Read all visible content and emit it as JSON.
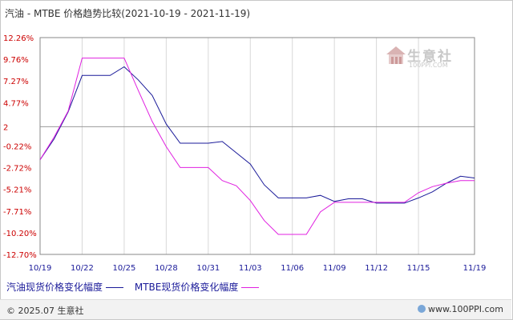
{
  "title": "汽油 - MTBE 价格趋势比较(2021-10-19 - 2021-11-19)",
  "watermark": {
    "name": "生意社",
    "url": "100PPI.COM"
  },
  "footer": {
    "left": "© 2025.07 生意社",
    "right": "www.100PPI.com"
  },
  "legend": [
    "汽油现货价格变化幅度",
    "MTBE现货价格变化幅度"
  ],
  "chart_data": {
    "type": "line",
    "x_tick_labels": [
      "10/19",
      "10/22",
      "10/25",
      "10/28",
      "10/31",
      "11/03",
      "11/06",
      "11/09",
      "11/12",
      "11/15",
      "11/19"
    ],
    "y_tick_labels": [
      "12.26%",
      "9.76%",
      "7.27%",
      "4.77%",
      "2",
      "-0.22%",
      "-2.72%",
      "-5.21%",
      "-7.71%",
      "-10.20%",
      "-12.70%"
    ],
    "y_ticks": [
      12.26,
      9.76,
      7.27,
      4.77,
      2,
      -0.22,
      -2.72,
      -5.21,
      -7.71,
      -10.2,
      -12.7
    ],
    "ylim": [
      -12.7,
      12.26
    ],
    "grid": "vertical",
    "legend_position": "bottom-left",
    "colors": {
      "gasoline": "#1a1a99",
      "mtbe": "#e020e0"
    },
    "series": [
      {
        "name": "汽油现货价格变化幅度",
        "color": "#1a1a99",
        "points": [
          [
            0,
            -1.8
          ],
          [
            1,
            0.6
          ],
          [
            2,
            3.7
          ],
          [
            3,
            7.9
          ],
          [
            4,
            7.9
          ],
          [
            5,
            7.9
          ],
          [
            6,
            8.9
          ],
          [
            7,
            7.4
          ],
          [
            8,
            5.6
          ],
          [
            9,
            2.3
          ],
          [
            10,
            0.1
          ],
          [
            11,
            0.1
          ],
          [
            12,
            0.1
          ],
          [
            13,
            0.3
          ],
          [
            14,
            -1.0
          ],
          [
            15,
            -2.3
          ],
          [
            16,
            -4.7
          ],
          [
            17,
            -6.2
          ],
          [
            18,
            -6.2
          ],
          [
            19,
            -6.2
          ],
          [
            20,
            -5.9
          ],
          [
            21,
            -6.6
          ],
          [
            22,
            -6.3
          ],
          [
            23,
            -6.3
          ],
          [
            24,
            -6.8
          ],
          [
            25,
            -6.8
          ],
          [
            26,
            -6.8
          ],
          [
            27,
            -6.2
          ],
          [
            28,
            -5.5
          ],
          [
            29,
            -4.5
          ],
          [
            30,
            -3.7
          ],
          [
            31,
            -3.9
          ]
        ]
      },
      {
        "name": "MTBE现货价格变化幅度",
        "color": "#e020e0",
        "points": [
          [
            0,
            -1.8
          ],
          [
            1,
            0.8
          ],
          [
            2,
            3.8
          ],
          [
            3,
            9.9
          ],
          [
            4,
            9.9
          ],
          [
            5,
            9.9
          ],
          [
            6,
            9.9
          ],
          [
            7,
            6.2
          ],
          [
            8,
            2.6
          ],
          [
            9,
            -0.3
          ],
          [
            10,
            -2.7
          ],
          [
            11,
            -2.7
          ],
          [
            12,
            -2.7
          ],
          [
            13,
            -4.2
          ],
          [
            14,
            -4.8
          ],
          [
            15,
            -6.5
          ],
          [
            16,
            -8.8
          ],
          [
            17,
            -10.4
          ],
          [
            18,
            -10.4
          ],
          [
            19,
            -10.4
          ],
          [
            20,
            -7.8
          ],
          [
            21,
            -6.7
          ],
          [
            22,
            -6.7
          ],
          [
            23,
            -6.7
          ],
          [
            24,
            -6.7
          ],
          [
            25,
            -6.7
          ],
          [
            26,
            -6.7
          ],
          [
            27,
            -5.6
          ],
          [
            28,
            -4.9
          ],
          [
            29,
            -4.5
          ],
          [
            30,
            -4.2
          ],
          [
            31,
            -4.2
          ]
        ]
      }
    ]
  }
}
